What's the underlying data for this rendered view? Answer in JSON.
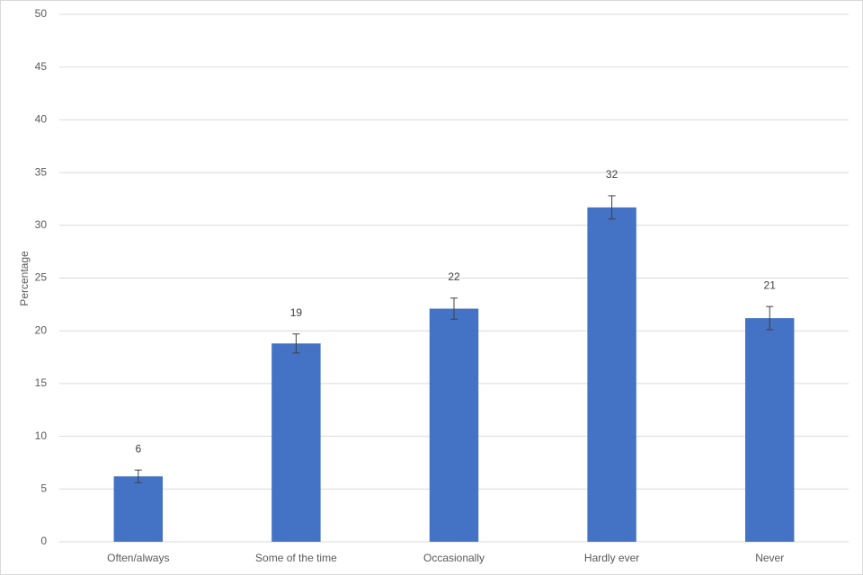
{
  "chart_data": {
    "type": "bar",
    "y_label": "Percentage",
    "categories": [
      "Often/always",
      "Some of the time",
      "Occasionally",
      "Hardly ever",
      "Never"
    ],
    "values": [
      6.2,
      18.8,
      22.1,
      31.7,
      21.2
    ],
    "value_labels": [
      "6",
      "19",
      "22",
      "32",
      "21"
    ],
    "errors": [
      0.6,
      0.9,
      1.0,
      1.1,
      1.1
    ],
    "color": "#4472c4",
    "ylim": [
      0,
      50
    ],
    "yticks": [
      0,
      5,
      10,
      15,
      20,
      25,
      30,
      35,
      40,
      45,
      50
    ],
    "grid": true
  }
}
